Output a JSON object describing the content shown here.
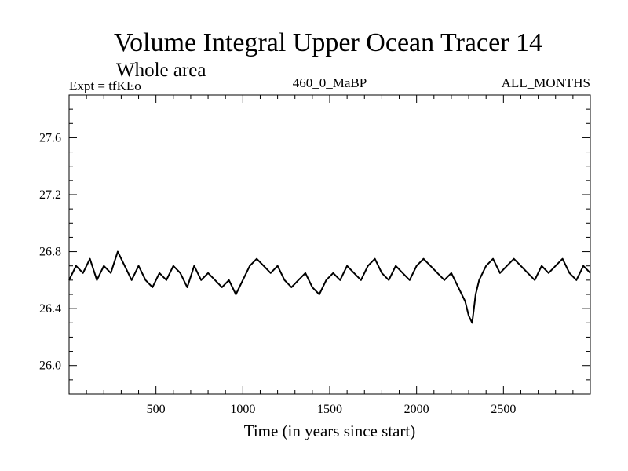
{
  "chart_data": {
    "type": "line",
    "title": "Volume Integral Upper Ocean Tracer 14",
    "subtitle": "Whole area",
    "header_left": "Expt = tfKEo",
    "header_center": "460_0_MaBP",
    "header_right": "ALL_MONTHS",
    "xlabel": "Time (in years since start)",
    "ylabel": "",
    "xlim": [
      0,
      3000
    ],
    "ylim": [
      25.8,
      27.9
    ],
    "x_ticks": [
      500,
      1000,
      1500,
      2000,
      2500
    ],
    "y_ticks": [
      26.0,
      26.4,
      26.8,
      27.2,
      27.6
    ],
    "x_minor_step": 100,
    "y_minor_step": 0.1,
    "grid": false,
    "series": [
      {
        "color": "#000000",
        "x": [
          0,
          40,
          80,
          120,
          160,
          200,
          240,
          280,
          320,
          360,
          400,
          440,
          480,
          520,
          560,
          600,
          640,
          680,
          720,
          760,
          800,
          840,
          880,
          920,
          960,
          1000,
          1040,
          1080,
          1120,
          1160,
          1200,
          1240,
          1280,
          1320,
          1360,
          1400,
          1440,
          1480,
          1520,
          1560,
          1600,
          1640,
          1680,
          1720,
          1760,
          1800,
          1840,
          1880,
          1920,
          1960,
          2000,
          2040,
          2080,
          2120,
          2160,
          2200,
          2240,
          2280,
          2300,
          2320,
          2340,
          2360,
          2400,
          2440,
          2480,
          2520,
          2560,
          2600,
          2640,
          2680,
          2720,
          2760,
          2800,
          2840,
          2880,
          2920,
          2960,
          3000
        ],
        "y": [
          26.6,
          26.7,
          26.65,
          26.75,
          26.6,
          26.7,
          26.65,
          26.8,
          26.7,
          26.6,
          26.7,
          26.6,
          26.55,
          26.65,
          26.6,
          26.7,
          26.65,
          26.55,
          26.7,
          26.6,
          26.65,
          26.6,
          26.55,
          26.6,
          26.5,
          26.6,
          26.7,
          26.75,
          26.7,
          26.65,
          26.7,
          26.6,
          26.55,
          26.6,
          26.65,
          26.55,
          26.5,
          26.6,
          26.65,
          26.6,
          26.7,
          26.65,
          26.6,
          26.7,
          26.75,
          26.65,
          26.6,
          26.7,
          26.65,
          26.6,
          26.7,
          26.75,
          26.7,
          26.65,
          26.6,
          26.65,
          26.55,
          26.45,
          26.35,
          26.3,
          26.5,
          26.6,
          26.7,
          26.75,
          26.65,
          26.7,
          26.75,
          26.7,
          26.65,
          26.6,
          26.7,
          26.65,
          26.7,
          26.75,
          26.65,
          26.6,
          26.7,
          26.65
        ]
      }
    ]
  }
}
